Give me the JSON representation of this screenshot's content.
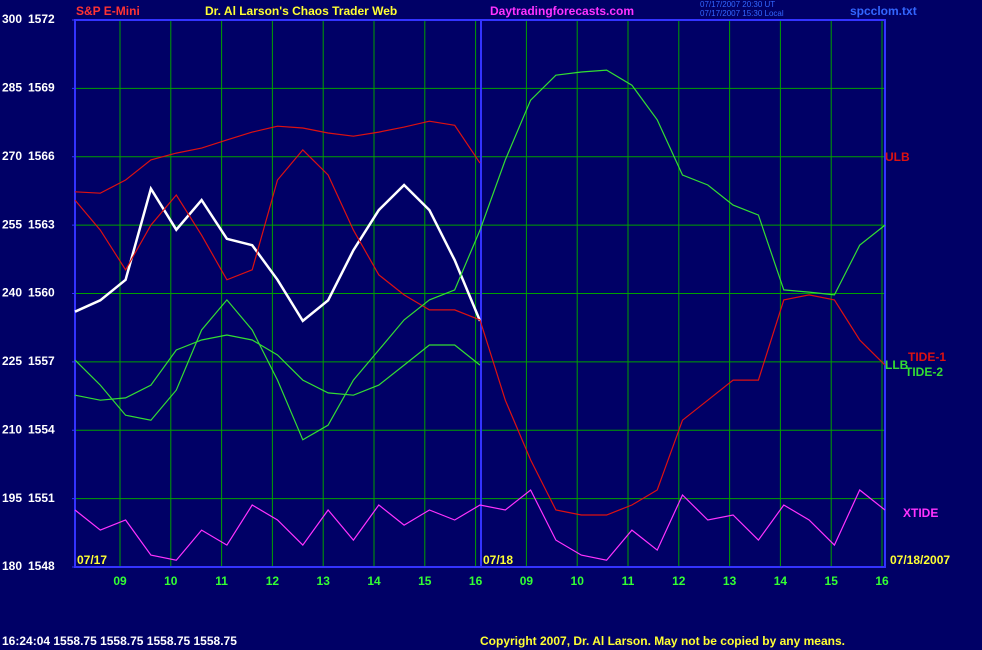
{
  "chart_data": {
    "type": "line",
    "symbol": "S&P E-Mini",
    "title": "Dr. Al Larson's Chaos Trader Web",
    "website": "Daytradingforecasts.com",
    "timestamps": [
      "07/17/2007 20:30 UT",
      "07/17/2007 15:30 Local"
    ],
    "file": "spcclom.txt",
    "quote": "16:24:04  1558.75 1558.75 1558.75 1558.75",
    "copyright": "Copyright 2007, Dr. Al Larson. May not be copied by any means.",
    "date_labels": [
      "07/17",
      "07/18",
      "07/18/2007"
    ],
    "xticks": [
      "09",
      "10",
      "11",
      "12",
      "13",
      "14",
      "15",
      "16",
      "09",
      "10",
      "11",
      "12",
      "13",
      "14",
      "15",
      "16"
    ],
    "ylim": [
      180,
      300
    ],
    "yticks": [
      180,
      195,
      210,
      225,
      240,
      255,
      270,
      285,
      300
    ],
    "y2lim": [
      1548,
      1572
    ],
    "y2ticks": [
      1548,
      1551,
      1554,
      1557,
      1560,
      1563,
      1566,
      1569,
      1572
    ],
    "grid": true,
    "series": [
      {
        "color": "#ffffff",
        "values": [
          236,
          238.5,
          243,
          263,
          254,
          260.5,
          252,
          250.6,
          243,
          234,
          238.5,
          249.5,
          258.3,
          263.8,
          258.3,
          247.3,
          234,
          null,
          null,
          null,
          null,
          null,
          null,
          null,
          null,
          null,
          null,
          null,
          null,
          null,
          null,
          null,
          null
        ]
      },
      {
        "name": "ULB",
        "color": "#dd1111",
        "values": [
          262.3,
          262.0,
          264.9,
          269.3,
          270.8,
          271.9,
          273.7,
          275.4,
          276.7,
          276.3,
          275.2,
          274.5,
          275.4,
          276.5,
          277.8,
          276.9,
          268.6,
          null,
          null,
          null,
          null,
          null,
          null,
          null,
          null,
          null,
          null,
          null,
          null,
          null,
          null,
          null,
          null
        ]
      },
      {
        "name": "LLB",
        "color": "#33dd33",
        "values": [
          217.7,
          216.6,
          217.1,
          219.9,
          227.6,
          229.8,
          230.9,
          229.8,
          226.5,
          221.0,
          218.2,
          217.7,
          219.9,
          224.3,
          228.7,
          228.7,
          224.3,
          null,
          null,
          null,
          null,
          null,
          null,
          null,
          null,
          null,
          null,
          null,
          null,
          null,
          null,
          null,
          null
        ]
      },
      {
        "name": "TIDE-1",
        "color": "#dd1111",
        "values": [
          260.5,
          253.9,
          245.2,
          255.0,
          261.6,
          252.8,
          243.0,
          245.2,
          264.9,
          271.5,
          266.0,
          253.9,
          244.1,
          239.7,
          236.4,
          236.4,
          234.2,
          216.6,
          203.5,
          192.5,
          191.4,
          191.4,
          193.6,
          196.9,
          212.2,
          216.6,
          221.0,
          221.0,
          238.6,
          239.7,
          238.6,
          229.8,
          224.3
        ]
      },
      {
        "name": "TIDE-2",
        "color": "#33dd33",
        "values": [
          225.4,
          219.9,
          213.3,
          212.2,
          218.8,
          232.0,
          238.6,
          232.0,
          221.0,
          207.9,
          211.1,
          221.0,
          227.6,
          234.2,
          238.6,
          240.8,
          253.9,
          269.3,
          282.4,
          287.9,
          288.6,
          289.0,
          285.7,
          278.1,
          266.0,
          263.8,
          259.4,
          257.2,
          240.8,
          240.3,
          239.7,
          250.6,
          255.0
        ]
      },
      {
        "name": "XTIDE",
        "color": "#ff33ff",
        "values": [
          192.5,
          188.1,
          190.3,
          182.6,
          181.5,
          188.1,
          184.8,
          193.6,
          190.3,
          184.8,
          192.5,
          185.9,
          193.6,
          189.2,
          192.5,
          190.3,
          193.6,
          192.5,
          196.9,
          185.9,
          182.6,
          181.5,
          188.1,
          183.7,
          195.8,
          190.3,
          191.4,
          185.9,
          193.6,
          190.3,
          184.8,
          196.9,
          192.5
        ]
      }
    ]
  }
}
